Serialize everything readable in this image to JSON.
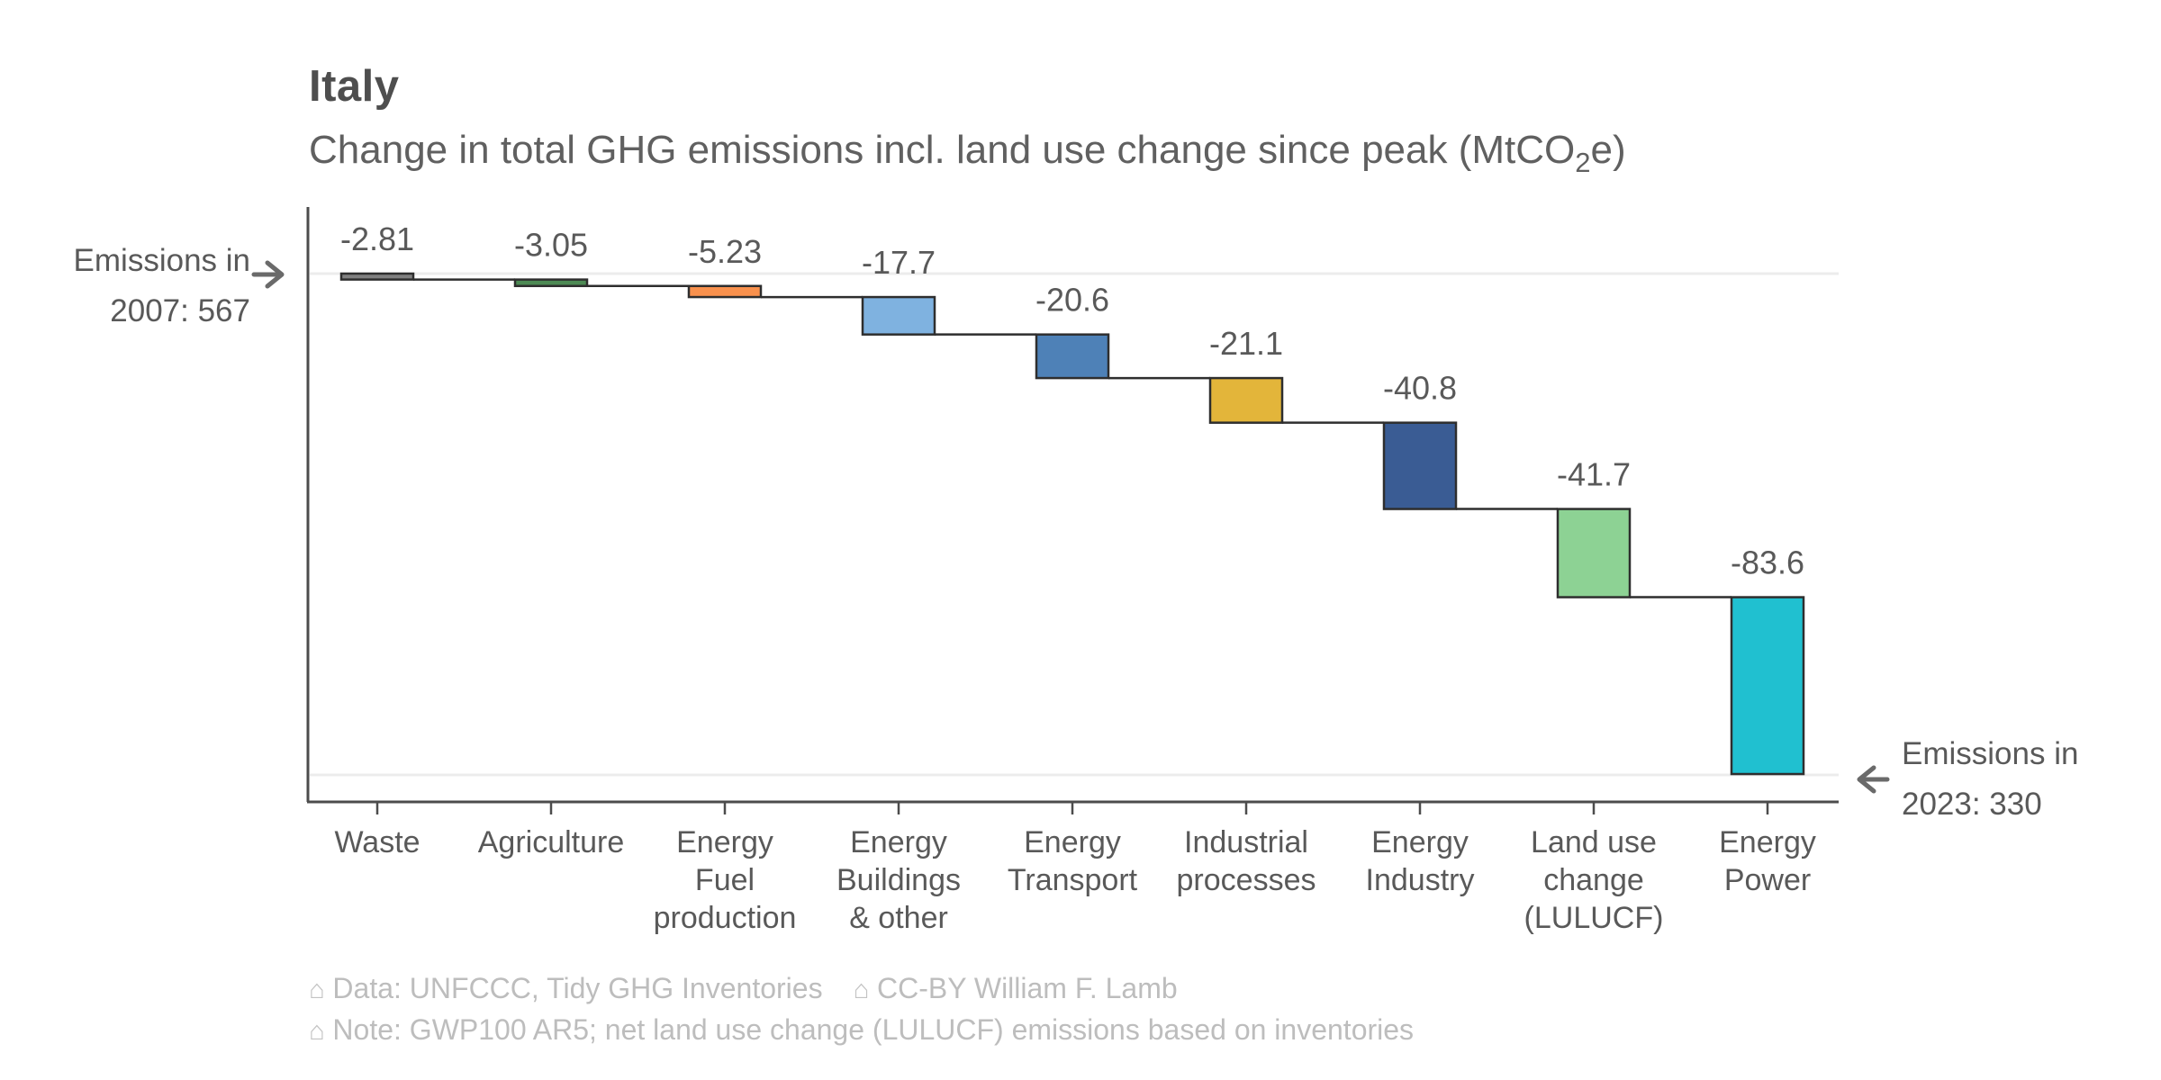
{
  "header": {
    "title": "Italy",
    "subtitle": {
      "pre": "Change in total GHG emissions incl. land use change since peak (MtCO",
      "sub": "2",
      "post": "e)"
    }
  },
  "annotations": {
    "start": {
      "line1": "Emissions in",
      "line2": "2007: 567"
    },
    "end": {
      "line1": "Emissions in",
      "line2": "2023: 330"
    }
  },
  "chart_data": {
    "type": "bar",
    "subtype": "waterfall",
    "title": "Italy",
    "subtitle": "Change in total GHG emissions incl. land use change since peak (MtCO2e)",
    "start_value": 567,
    "end_value": 330,
    "start_annotation": "Emissions in 2007: 567",
    "end_annotation": "Emissions in 2023: 330",
    "categories": [
      "Waste",
      "Agriculture",
      "Energy Fuel production",
      "Energy Buildings & other",
      "Energy Transport",
      "Industrial processes",
      "Energy Industry",
      "Land use change (LULUCF)",
      "Energy Power"
    ],
    "category_lines": [
      [
        "Waste"
      ],
      [
        "Agriculture"
      ],
      [
        "Energy",
        "Fuel",
        "production"
      ],
      [
        "Energy",
        "Buildings",
        "& other"
      ],
      [
        "Energy",
        "Transport"
      ],
      [
        "Industrial",
        "processes"
      ],
      [
        "Energy",
        "Industry"
      ],
      [
        "Land use",
        "change",
        "(LULUCF)"
      ],
      [
        "Energy",
        "Power"
      ]
    ],
    "values": [
      -2.81,
      -3.05,
      -5.23,
      -17.7,
      -20.6,
      -21.1,
      -40.8,
      -41.7,
      -83.6
    ],
    "value_labels": [
      "-2.81",
      "-3.05",
      "-5.23",
      "-17.7",
      "-20.6",
      "-21.1",
      "-40.8",
      "-41.7",
      "-83.6"
    ],
    "bar_colors": [
      "#808080",
      "#4d8a54",
      "#f9914d",
      "#7fb2e0",
      "#4e81b7",
      "#e3b53a",
      "#3a5c94",
      "#8dd294",
      "#20c0d0"
    ],
    "bar_border_color": "#2e2e2e",
    "axis_color": "#4c4c4c",
    "gridline_color": "#ececec",
    "label_color": "#595959",
    "gridline_values": [
      567,
      330
    ],
    "ylim": [
      330,
      567
    ],
    "grid": "two horizontal reference lines at start and end totals",
    "legend": "none"
  },
  "footer": {
    "icon": "⌂",
    "credit_data": "Data: UNFCCC, Tidy GHG Inventories",
    "credit_license": "CC-BY William F. Lamb",
    "note": "Note: GWP100 AR5; net land use change (LULUCF) emissions based on inventories"
  }
}
